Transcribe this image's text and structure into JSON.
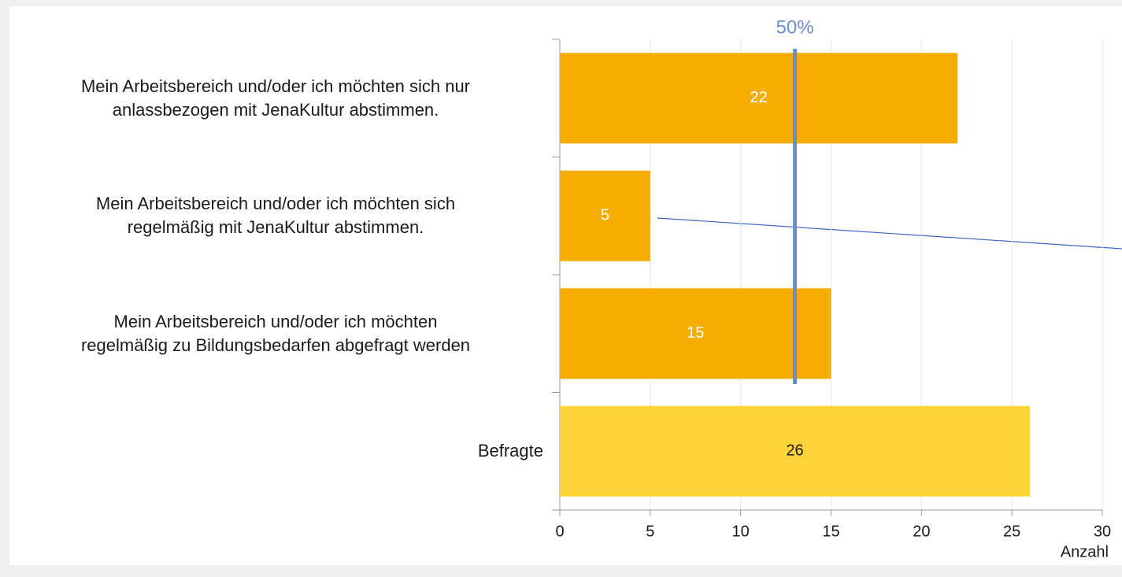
{
  "chart_data": {
    "type": "bar",
    "orientation": "horizontal",
    "categories": [
      "Mein Arbeitsbereich und/oder ich möchten sich nur\nanlassbezogen mit JenaKultur abstimmen.",
      "Mein Arbeitsbereich und/oder ich möchten sich\nregelmäßig mit JenaKultur abstimmen.",
      "Mein Arbeitsbereich und/oder ich möchten\nregelmäßig zu Bildungsbedarfen abgefragt werden",
      "Befragte"
    ],
    "values": [
      22,
      5,
      15,
      26
    ],
    "colors": [
      "#f5ae00",
      "#f5ae00",
      "#f5ae00",
      "#ffd43b"
    ],
    "value_label_colors": [
      "#ffffff",
      "#ffffff",
      "#ffffff",
      "#1a1a1a"
    ],
    "xlim": [
      0,
      30
    ],
    "xticks": [
      0,
      5,
      10,
      15,
      20,
      25,
      30
    ],
    "xlabel": "Anzahl",
    "grid": true,
    "reference_line": {
      "value": 13,
      "label": "50%",
      "color": "#6a8fc8"
    }
  }
}
